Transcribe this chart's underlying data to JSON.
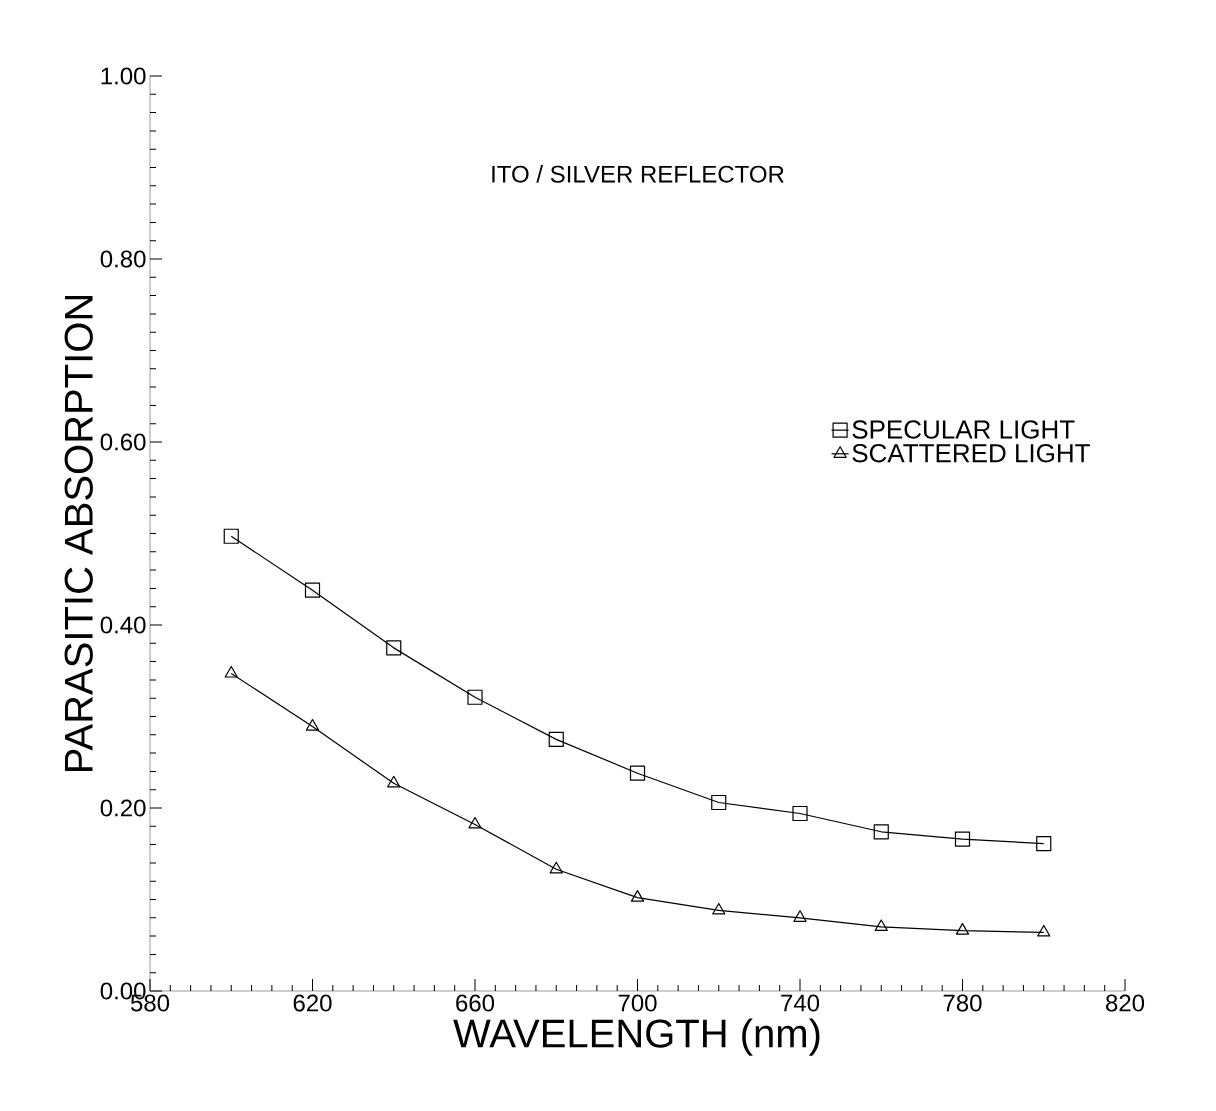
{
  "chart_data": {
    "type": "line",
    "title": "ITO / SILVER REFLECTOR",
    "xlabel": "WAVELENGTH (nm)",
    "ylabel": "PARASITIC ABSORPTION",
    "x": [
      600,
      620,
      640,
      660,
      680,
      700,
      720,
      740,
      760,
      780,
      800
    ],
    "series": [
      {
        "name": "SPECULAR LIGHT",
        "color": "#000000",
        "marker": "square",
        "values": [
          0.497,
          0.438,
          0.375,
          0.321,
          0.275,
          0.238,
          0.206,
          0.194,
          0.174,
          0.166,
          0.161
        ]
      },
      {
        "name": "SCATTERED LIGHT",
        "color": "#000000",
        "marker": "triangle",
        "values": [
          0.347,
          0.289,
          0.227,
          0.182,
          0.133,
          0.102,
          0.088,
          0.08,
          0.07,
          0.066,
          0.064
        ]
      }
    ],
    "xlim": [
      580,
      820
    ],
    "ylim": [
      0,
      1
    ],
    "xticks": [
      580,
      620,
      660,
      700,
      740,
      780,
      820
    ],
    "yticks": [
      {
        "value": 0,
        "label": "0.00"
      },
      {
        "value": 0.2,
        "label": "0.20"
      },
      {
        "value": 0.4,
        "label": "0.40"
      },
      {
        "value": 0.6,
        "label": "0.60"
      },
      {
        "value": 0.8,
        "label": "0.80"
      },
      {
        "value": 1,
        "label": "1.00"
      }
    ],
    "legend": "right",
    "grid": false,
    "line_style": "solid"
  }
}
